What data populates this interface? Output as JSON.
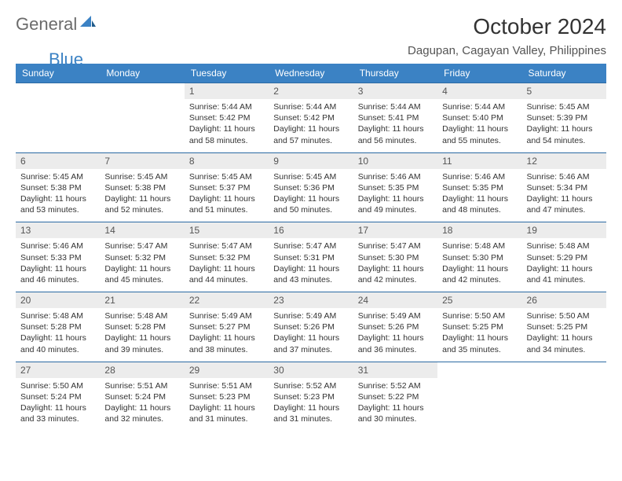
{
  "logo": {
    "word1": "General",
    "word2": "Blue"
  },
  "colors": {
    "header_bg": "#3b82c4",
    "header_text": "#ffffff",
    "daynum_bg": "#ececec",
    "row_border": "#2b6aa3",
    "logo_general": "#6b6b6b",
    "logo_blue": "#3b82c4"
  },
  "title": "October 2024",
  "location": "Dagupan, Cagayan Valley, Philippines",
  "weekdays": [
    "Sunday",
    "Monday",
    "Tuesday",
    "Wednesday",
    "Thursday",
    "Friday",
    "Saturday"
  ],
  "weeks": [
    [
      null,
      null,
      {
        "n": "1",
        "sr": "5:44 AM",
        "ss": "5:42 PM",
        "dl": "11 hours and 58 minutes."
      },
      {
        "n": "2",
        "sr": "5:44 AM",
        "ss": "5:42 PM",
        "dl": "11 hours and 57 minutes."
      },
      {
        "n": "3",
        "sr": "5:44 AM",
        "ss": "5:41 PM",
        "dl": "11 hours and 56 minutes."
      },
      {
        "n": "4",
        "sr": "5:44 AM",
        "ss": "5:40 PM",
        "dl": "11 hours and 55 minutes."
      },
      {
        "n": "5",
        "sr": "5:45 AM",
        "ss": "5:39 PM",
        "dl": "11 hours and 54 minutes."
      }
    ],
    [
      {
        "n": "6",
        "sr": "5:45 AM",
        "ss": "5:38 PM",
        "dl": "11 hours and 53 minutes."
      },
      {
        "n": "7",
        "sr": "5:45 AM",
        "ss": "5:38 PM",
        "dl": "11 hours and 52 minutes."
      },
      {
        "n": "8",
        "sr": "5:45 AM",
        "ss": "5:37 PM",
        "dl": "11 hours and 51 minutes."
      },
      {
        "n": "9",
        "sr": "5:45 AM",
        "ss": "5:36 PM",
        "dl": "11 hours and 50 minutes."
      },
      {
        "n": "10",
        "sr": "5:46 AM",
        "ss": "5:35 PM",
        "dl": "11 hours and 49 minutes."
      },
      {
        "n": "11",
        "sr": "5:46 AM",
        "ss": "5:35 PM",
        "dl": "11 hours and 48 minutes."
      },
      {
        "n": "12",
        "sr": "5:46 AM",
        "ss": "5:34 PM",
        "dl": "11 hours and 47 minutes."
      }
    ],
    [
      {
        "n": "13",
        "sr": "5:46 AM",
        "ss": "5:33 PM",
        "dl": "11 hours and 46 minutes."
      },
      {
        "n": "14",
        "sr": "5:47 AM",
        "ss": "5:32 PM",
        "dl": "11 hours and 45 minutes."
      },
      {
        "n": "15",
        "sr": "5:47 AM",
        "ss": "5:32 PM",
        "dl": "11 hours and 44 minutes."
      },
      {
        "n": "16",
        "sr": "5:47 AM",
        "ss": "5:31 PM",
        "dl": "11 hours and 43 minutes."
      },
      {
        "n": "17",
        "sr": "5:47 AM",
        "ss": "5:30 PM",
        "dl": "11 hours and 42 minutes."
      },
      {
        "n": "18",
        "sr": "5:48 AM",
        "ss": "5:30 PM",
        "dl": "11 hours and 42 minutes."
      },
      {
        "n": "19",
        "sr": "5:48 AM",
        "ss": "5:29 PM",
        "dl": "11 hours and 41 minutes."
      }
    ],
    [
      {
        "n": "20",
        "sr": "5:48 AM",
        "ss": "5:28 PM",
        "dl": "11 hours and 40 minutes."
      },
      {
        "n": "21",
        "sr": "5:48 AM",
        "ss": "5:28 PM",
        "dl": "11 hours and 39 minutes."
      },
      {
        "n": "22",
        "sr": "5:49 AM",
        "ss": "5:27 PM",
        "dl": "11 hours and 38 minutes."
      },
      {
        "n": "23",
        "sr": "5:49 AM",
        "ss": "5:26 PM",
        "dl": "11 hours and 37 minutes."
      },
      {
        "n": "24",
        "sr": "5:49 AM",
        "ss": "5:26 PM",
        "dl": "11 hours and 36 minutes."
      },
      {
        "n": "25",
        "sr": "5:50 AM",
        "ss": "5:25 PM",
        "dl": "11 hours and 35 minutes."
      },
      {
        "n": "26",
        "sr": "5:50 AM",
        "ss": "5:25 PM",
        "dl": "11 hours and 34 minutes."
      }
    ],
    [
      {
        "n": "27",
        "sr": "5:50 AM",
        "ss": "5:24 PM",
        "dl": "11 hours and 33 minutes."
      },
      {
        "n": "28",
        "sr": "5:51 AM",
        "ss": "5:24 PM",
        "dl": "11 hours and 32 minutes."
      },
      {
        "n": "29",
        "sr": "5:51 AM",
        "ss": "5:23 PM",
        "dl": "11 hours and 31 minutes."
      },
      {
        "n": "30",
        "sr": "5:52 AM",
        "ss": "5:23 PM",
        "dl": "11 hours and 31 minutes."
      },
      {
        "n": "31",
        "sr": "5:52 AM",
        "ss": "5:22 PM",
        "dl": "11 hours and 30 minutes."
      },
      null,
      null
    ]
  ],
  "labels": {
    "sunrise": "Sunrise: ",
    "sunset": "Sunset: ",
    "daylight": "Daylight: "
  }
}
